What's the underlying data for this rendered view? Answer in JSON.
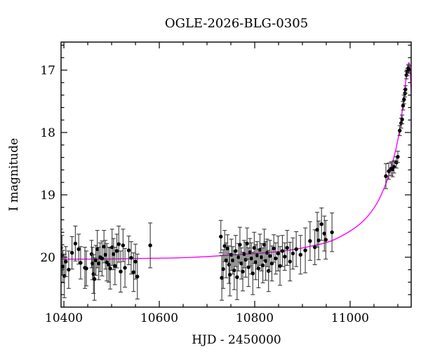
{
  "chart_data": {
    "type": "scatter",
    "title": "OGLE-2026-BLG-0305",
    "xlabel": "HJD - 2450000",
    "ylabel": "I magnitude",
    "x_range": [
      10394,
      11128
    ],
    "y_range_mag": [
      16.55,
      20.8
    ],
    "y_axis_inverted": true,
    "grid": false,
    "legend": "none",
    "x_major_ticks": [
      10400,
      10600,
      10800,
      11000
    ],
    "x_minor_tick_step": 50,
    "y_major_ticks": [
      17,
      18,
      19,
      20
    ],
    "y_minor_tick_step": 0.2,
    "colors": {
      "points": "#000000",
      "error_bars": "#3a3a3a",
      "model_curve": "#ff00ff",
      "frame": "#000000",
      "background": "#ffffff"
    },
    "model_curve_anchors": [
      [
        10394,
        20.03
      ],
      [
        10480,
        20.03
      ],
      [
        10560,
        20.02
      ],
      [
        10640,
        20.01
      ],
      [
        10700,
        19.99
      ],
      [
        10760,
        19.96
      ],
      [
        10820,
        19.93
      ],
      [
        10870,
        19.89
      ],
      [
        10920,
        19.82
      ],
      [
        10960,
        19.74
      ],
      [
        11000,
        19.58
      ],
      [
        11030,
        19.4
      ],
      [
        11055,
        19.15
      ],
      [
        11075,
        18.82
      ],
      [
        11090,
        18.45
      ],
      [
        11100,
        18.12
      ],
      [
        11108,
        17.72
      ],
      [
        11114,
        17.35
      ],
      [
        11118,
        17.1
      ],
      [
        11121,
        16.95
      ],
      [
        11123.5,
        16.88
      ],
      [
        11126,
        17.02
      ],
      [
        11128,
        17.35
      ]
    ],
    "points": [
      [
        10394,
        19.85,
        0.3
      ],
      [
        10396,
        19.97,
        0.32
      ],
      [
        10398,
        20.15,
        0.26
      ],
      [
        10401,
        20.3,
        0.35
      ],
      [
        10404,
        20.07,
        0.24
      ],
      [
        10410,
        20.2,
        0.3
      ],
      [
        10417,
        19.93,
        0.26
      ],
      [
        10424,
        19.78,
        0.28
      ],
      [
        10431,
        19.87,
        0.24
      ],
      [
        10435,
        20.09,
        0.26
      ],
      [
        10444,
        20.17,
        0.33
      ],
      [
        10447,
        20.18,
        0.28
      ],
      [
        10458,
        19.95,
        0.22
      ],
      [
        10460,
        20.1,
        0.26
      ],
      [
        10462,
        20.27,
        0.31
      ],
      [
        10464,
        20.35,
        0.34
      ],
      [
        10467,
        20.05,
        0.24
      ],
      [
        10470,
        19.87,
        0.3
      ],
      [
        10473,
        20.1,
        0.26
      ],
      [
        10476,
        20.0,
        0.23
      ],
      [
        10480,
        20.02,
        0.28
      ],
      [
        10484,
        19.83,
        0.26
      ],
      [
        10487,
        19.96,
        0.23
      ],
      [
        10490,
        20.08,
        0.3
      ],
      [
        10494,
        20.12,
        0.28
      ],
      [
        10497,
        20.18,
        0.33
      ],
      [
        10501,
        19.84,
        0.29
      ],
      [
        10504,
        19.95,
        0.25
      ],
      [
        10507,
        20.14,
        0.3
      ],
      [
        10511,
        19.9,
        0.27
      ],
      [
        10515,
        19.79,
        0.29
      ],
      [
        10519,
        20.23,
        0.33
      ],
      [
        10524,
        19.81,
        0.26
      ],
      [
        10528,
        20.17,
        0.31
      ],
      [
        10536,
        19.89,
        0.23
      ],
      [
        10541,
        20.01,
        0.26
      ],
      [
        10546,
        20.24,
        0.31
      ],
      [
        10550,
        20.07,
        0.28
      ],
      [
        10554,
        20.31,
        0.36
      ],
      [
        10581,
        19.81,
        0.36
      ],
      [
        10729,
        19.67,
        0.26
      ],
      [
        10731,
        20.33,
        0.36
      ],
      [
        10734,
        20.19,
        0.31
      ],
      [
        10737,
        19.82,
        0.25
      ],
      [
        10740,
        20.05,
        0.28
      ],
      [
        10743,
        19.86,
        0.22
      ],
      [
        10746,
        20.12,
        0.3
      ],
      [
        10748,
        20.28,
        0.34
      ],
      [
        10751,
        19.96,
        0.25
      ],
      [
        10754,
        20.05,
        0.22
      ],
      [
        10757,
        20.21,
        0.31
      ],
      [
        10760,
        19.9,
        0.25
      ],
      [
        10763,
        20.32,
        0.36
      ],
      [
        10766,
        20.0,
        0.22
      ],
      [
        10769,
        19.8,
        0.28
      ],
      [
        10772,
        20.1,
        0.25
      ],
      [
        10775,
        20.23,
        0.31
      ],
      [
        10778,
        19.95,
        0.22
      ],
      [
        10781,
        20.04,
        0.28
      ],
      [
        10784,
        19.78,
        0.25
      ],
      [
        10787,
        20.16,
        0.31
      ],
      [
        10790,
        19.92,
        0.22
      ],
      [
        10793,
        20.02,
        0.25
      ],
      [
        10796,
        20.26,
        0.34
      ],
      [
        10799,
        19.85,
        0.25
      ],
      [
        10802,
        20.08,
        0.28
      ],
      [
        10805,
        19.97,
        0.22
      ],
      [
        10808,
        20.18,
        0.31
      ],
      [
        10811,
        19.88,
        0.25
      ],
      [
        10814,
        20.0,
        0.22
      ],
      [
        10817,
        20.13,
        0.28
      ],
      [
        10820,
        19.8,
        0.25
      ],
      [
        10823,
        20.06,
        0.31
      ],
      [
        10826,
        19.93,
        0.22
      ],
      [
        10829,
        20.22,
        0.33
      ],
      [
        10832,
        19.98,
        0.25
      ],
      [
        10836,
        20.1,
        0.28
      ],
      [
        10840,
        19.86,
        0.22
      ],
      [
        10844,
        20.02,
        0.25
      ],
      [
        10849,
        19.94,
        0.28
      ],
      [
        10853,
        20.14,
        0.31
      ],
      [
        10858,
        19.9,
        0.25
      ],
      [
        10863,
        19.99,
        0.22
      ],
      [
        10868,
        19.85,
        0.28
      ],
      [
        10874,
        20.07,
        0.31
      ],
      [
        10880,
        19.94,
        0.25
      ],
      [
        10887,
        19.87,
        0.28
      ],
      [
        10896,
        19.96,
        0.31
      ],
      [
        10906,
        19.89,
        0.36
      ],
      [
        10916,
        19.74,
        0.31
      ],
      [
        10926,
        19.84,
        0.28
      ],
      [
        10931,
        19.56,
        0.28
      ],
      [
        10934,
        19.73,
        0.31
      ],
      [
        10940,
        19.47,
        0.26
      ],
      [
        10946,
        19.62,
        0.28
      ],
      [
        10949,
        19.72,
        0.31
      ],
      [
        10962,
        19.6,
        0.31
      ],
      [
        11075,
        18.7,
        0.2
      ],
      [
        11081,
        18.62,
        0.13
      ],
      [
        11086,
        18.58,
        0.11
      ],
      [
        11089,
        18.59,
        0.12
      ],
      [
        11092,
        18.55,
        0.1
      ],
      [
        11097,
        18.48,
        0.09
      ],
      [
        11100,
        18.39,
        0.09
      ],
      [
        11104,
        17.97,
        0.08
      ],
      [
        11107,
        17.85,
        0.08
      ],
      [
        11109,
        17.79,
        0.07
      ],
      [
        11111,
        17.57,
        0.07
      ],
      [
        11113,
        17.47,
        0.07
      ],
      [
        11115,
        17.37,
        0.06
      ],
      [
        11116,
        17.31,
        0.06
      ],
      [
        11118,
        17.08,
        0.06
      ],
      [
        11120,
        17.03,
        0.06
      ],
      [
        11122,
        16.97,
        0.06
      ],
      [
        11123,
        16.99,
        0.06
      ]
    ]
  }
}
